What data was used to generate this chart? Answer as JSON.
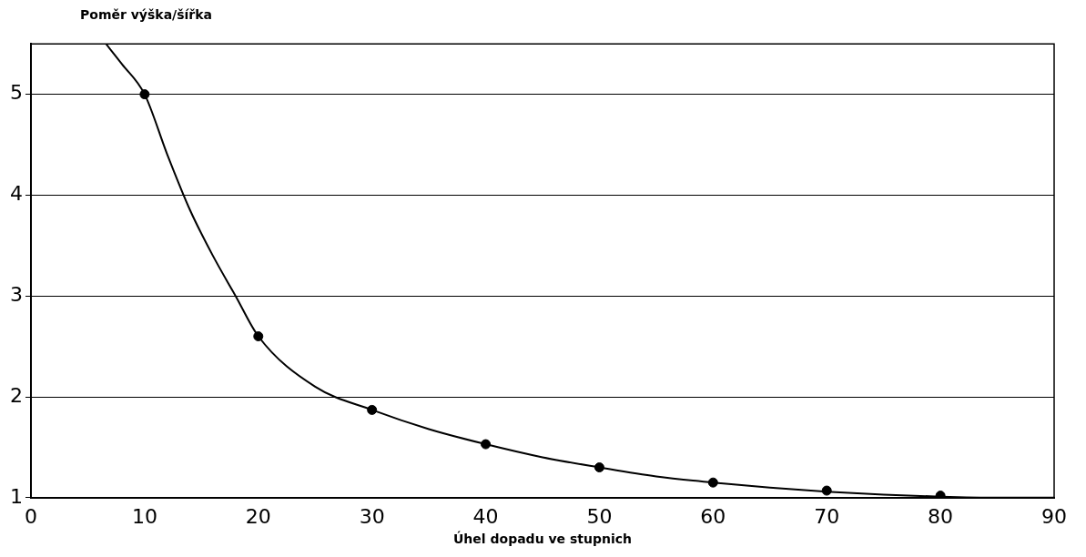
{
  "chart_data": {
    "type": "scatter",
    "ylabel": "Poměr výška/šířka",
    "xlabel": "Úhel dopadu ve stupnich",
    "xlim": [
      0,
      90
    ],
    "xticks": [
      0,
      10,
      20,
      30,
      40,
      50,
      60,
      70,
      80,
      90
    ],
    "ylim": [
      1,
      5.5
    ],
    "yticks": [
      1,
      2,
      3,
      4,
      5
    ],
    "grid": "y",
    "legend": false,
    "series": [
      {
        "type": "line",
        "color": "#000000",
        "marker": "none",
        "x": [
          6.6,
          8,
          10,
          12,
          14,
          16,
          18,
          20,
          25,
          30,
          35,
          40,
          45,
          50,
          55,
          60,
          65,
          70,
          75,
          80,
          85,
          90
        ],
        "values": [
          5.5,
          5.3,
          5.0,
          4.4,
          3.85,
          3.4,
          3.0,
          2.6,
          2.1,
          1.87,
          1.68,
          1.53,
          1.4,
          1.3,
          1.21,
          1.15,
          1.1,
          1.06,
          1.03,
          1.01,
          1.0,
          1.0
        ]
      },
      {
        "type": "scatter",
        "color": "#000000",
        "marker": "circle",
        "x": [
          10,
          20,
          30,
          40,
          50,
          60,
          70,
          80
        ],
        "values": [
          5.0,
          2.6,
          1.87,
          1.53,
          1.3,
          1.15,
          1.07,
          1.02
        ]
      }
    ]
  }
}
